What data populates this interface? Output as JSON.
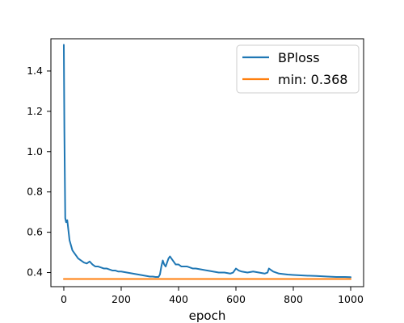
{
  "chart_data": {
    "type": "line",
    "title": "",
    "xlabel": "epoch",
    "ylabel": "",
    "xlim": [
      -45,
      1045
    ],
    "ylim": [
      0.33,
      1.56
    ],
    "xticks": [
      0,
      200,
      400,
      600,
      800,
      1000
    ],
    "yticks": [
      0.4,
      0.6,
      0.8,
      1.0,
      1.2,
      1.4
    ],
    "xtick_labels": [
      "0",
      "200",
      "400",
      "600",
      "800",
      "1000"
    ],
    "ytick_labels": [
      "0.4",
      "0.6",
      "0.8",
      "1.0",
      "1.2",
      "1.4"
    ],
    "grid": false,
    "legend_position": "top-right",
    "colors": {
      "BPloss": "#1f77b4",
      "min": "#ff7f0e"
    },
    "series": [
      {
        "name": "BPloss",
        "x": [
          0,
          2,
          5,
          8,
          12,
          20,
          30,
          40,
          50,
          60,
          70,
          80,
          90,
          100,
          110,
          120,
          130,
          140,
          150,
          160,
          170,
          180,
          190,
          200,
          220,
          240,
          260,
          280,
          300,
          310,
          320,
          330,
          335,
          340,
          345,
          350,
          355,
          360,
          365,
          370,
          375,
          380,
          385,
          390,
          400,
          410,
          420,
          430,
          440,
          450,
          460,
          480,
          500,
          520,
          540,
          560,
          580,
          590,
          600,
          605,
          610,
          620,
          640,
          660,
          680,
          700,
          710,
          715,
          720,
          730,
          750,
          780,
          800,
          840,
          880,
          920,
          950,
          980,
          1000
        ],
        "y": [
          1.53,
          1.1,
          0.67,
          0.65,
          0.66,
          0.56,
          0.51,
          0.49,
          0.47,
          0.46,
          0.45,
          0.445,
          0.455,
          0.44,
          0.43,
          0.43,
          0.425,
          0.42,
          0.42,
          0.415,
          0.41,
          0.41,
          0.405,
          0.405,
          0.4,
          0.395,
          0.39,
          0.385,
          0.38,
          0.38,
          0.378,
          0.378,
          0.39,
          0.43,
          0.46,
          0.44,
          0.43,
          0.45,
          0.47,
          0.48,
          0.47,
          0.46,
          0.45,
          0.44,
          0.44,
          0.43,
          0.43,
          0.43,
          0.425,
          0.42,
          0.42,
          0.415,
          0.41,
          0.405,
          0.4,
          0.4,
          0.395,
          0.4,
          0.42,
          0.415,
          0.41,
          0.405,
          0.4,
          0.405,
          0.4,
          0.395,
          0.4,
          0.42,
          0.415,
          0.405,
          0.395,
          0.39,
          0.388,
          0.385,
          0.383,
          0.38,
          0.378,
          0.378,
          0.377
        ]
      },
      {
        "name": "min: 0.368",
        "x": [
          0,
          1000
        ],
        "y": [
          0.368,
          0.368
        ]
      }
    ]
  }
}
